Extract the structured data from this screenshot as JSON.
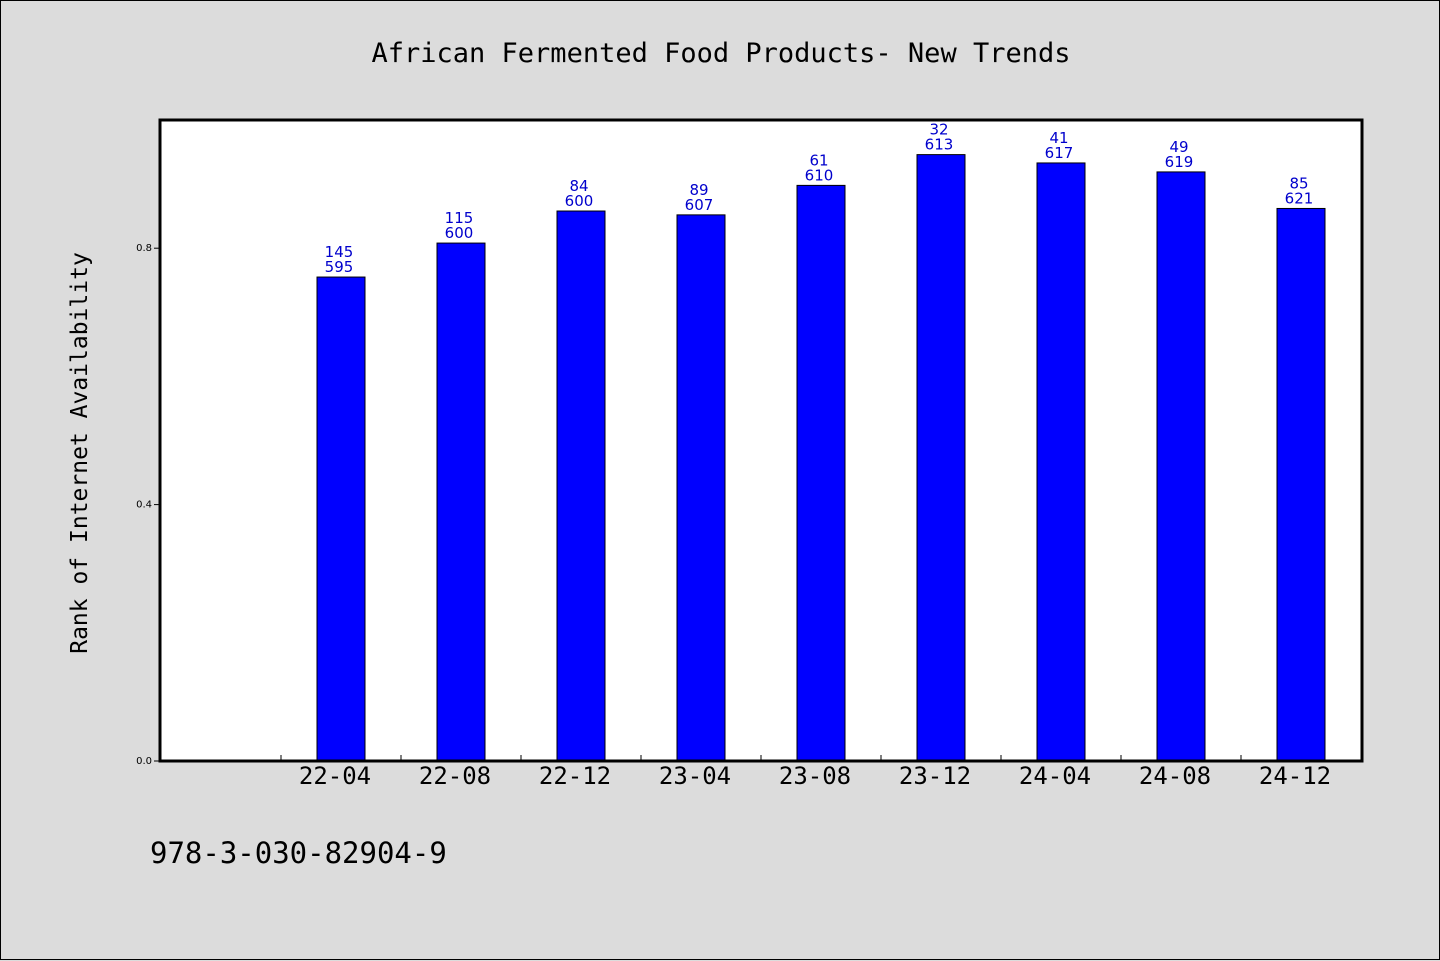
{
  "chart_data": {
    "type": "bar",
    "title": "African Fermented Food Products- New Trends",
    "xlabel": "",
    "ylabel": "Rank of Internet Availability",
    "categories": [
      "22-04",
      "22-08",
      "22-12",
      "23-04",
      "23-08",
      "23-12",
      "24-04",
      "24-08",
      "24-12"
    ],
    "values": [
      0.755,
      0.808,
      0.858,
      0.852,
      0.898,
      0.946,
      0.933,
      0.919,
      0.862
    ],
    "data_labels": [
      [
        "145",
        "595"
      ],
      [
        "115",
        "600"
      ],
      [
        "84",
        "600"
      ],
      [
        "89",
        "607"
      ],
      [
        "61",
        "610"
      ],
      [
        "32",
        "613"
      ],
      [
        "41",
        "617"
      ],
      [
        "49",
        "619"
      ],
      [
        "85",
        "621"
      ]
    ],
    "yticks": [
      0.0,
      0.4,
      0.8
    ],
    "ytick_labels": [
      "0.0",
      "0.4",
      "0.8"
    ],
    "ylim": [
      0,
      1.0
    ],
    "grid": false,
    "colors": {
      "bar": "#0000ff",
      "data_label": "#0000cc",
      "background": "#dcdcdc",
      "plot_area": "#ffffff"
    }
  },
  "footer_text": "978-3-030-82904-9"
}
